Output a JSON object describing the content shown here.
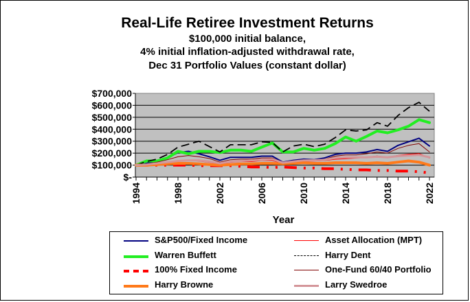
{
  "chart_data": {
    "type": "line",
    "title": "Real-Life Retiree Investment Returns",
    "subtitle": [
      "$100,000 initial balance,",
      "4% initial inflation-adjusted withdrawal rate,",
      "Dec 31 Portfolio Values (constant dollar)"
    ],
    "xlabel": "Year",
    "ylabel": "",
    "xlim": [
      1994,
      2022
    ],
    "ylim": [
      0,
      700000
    ],
    "grid": true,
    "legend_position": "bottom",
    "x_tick_labels": [
      "1994",
      "1998",
      "2002",
      "2006",
      "2010",
      "2014",
      "2018",
      "2022"
    ],
    "y_tick_labels": [
      "$700,000",
      "$600,000",
      "$500,000",
      "$400,000",
      "$300,000",
      "$200,000",
      "$100,000",
      "$-"
    ],
    "y_tick_values": [
      700000,
      600000,
      500000,
      400000,
      300000,
      200000,
      100000,
      0
    ],
    "x": [
      1994,
      1995,
      1996,
      1997,
      1998,
      1999,
      2000,
      2001,
      2002,
      2003,
      2004,
      2005,
      2006,
      2007,
      2008,
      2009,
      2010,
      2011,
      2012,
      2013,
      2014,
      2015,
      2016,
      2017,
      2018,
      2019,
      2020,
      2021,
      2022
    ],
    "series": [
      {
        "name": "S&P500/Fixed Income",
        "color": "#000080",
        "width": 2,
        "dash": "",
        "values": [
          100000,
          115000,
          135000,
          160000,
          205000,
          215000,
          195000,
          170000,
          140000,
          165000,
          165000,
          165000,
          175000,
          175000,
          125000,
          140000,
          150000,
          145000,
          160000,
          190000,
          200000,
          200000,
          210000,
          230000,
          215000,
          265000,
          295000,
          325000,
          260000
        ]
      },
      {
        "name": "Asset Allocation (MPT)",
        "color": "#ff0000",
        "width": 1.5,
        "dash": "",
        "values": [
          100000,
          105000,
          115000,
          125000,
          135000,
          140000,
          135000,
          125000,
          110000,
          125000,
          130000,
          130000,
          140000,
          140000,
          115000,
          130000,
          135000,
          135000,
          140000,
          150000,
          155000,
          160000,
          165000,
          175000,
          165000,
          180000,
          190000,
          195000,
          160000
        ]
      },
      {
        "name": "Warren Buffett",
        "color": "#22ee22",
        "width": 4,
        "dash": "",
        "values": [
          100000,
          135000,
          135000,
          160000,
          215000,
          195000,
          215000,
          215000,
          205000,
          225000,
          225000,
          215000,
          250000,
          285000,
          210000,
          210000,
          240000,
          225000,
          240000,
          280000,
          335000,
          300000,
          340000,
          385000,
          370000,
          395000,
          425000,
          480000,
          455000
        ]
      },
      {
        "name": "Harry Dent",
        "color": "#000000",
        "width": 1.8,
        "dash": "12,6",
        "values": [
          100000,
          130000,
          150000,
          190000,
          250000,
          275000,
          300000,
          255000,
          210000,
          270000,
          270000,
          270000,
          295000,
          290000,
          210000,
          260000,
          275000,
          255000,
          275000,
          330000,
          395000,
          385000,
          395000,
          455000,
          425000,
          515000,
          580000,
          625000,
          550000
        ]
      },
      {
        "name": "100% Fixed Income",
        "color": "#ff0000",
        "width": 4,
        "dash": "18,10,3,10,3,10",
        "values": [
          100000,
          100000,
          100000,
          100000,
          100000,
          100000,
          95000,
          95000,
          95000,
          95000,
          90000,
          85000,
          85000,
          80000,
          85000,
          80000,
          75000,
          75000,
          70000,
          70000,
          65000,
          60000,
          60000,
          55000,
          55000,
          50000,
          50000,
          45000,
          35000
        ]
      },
      {
        "name": "One-Fund 60/40 Portfolio",
        "color": "#800000",
        "width": 1,
        "dash": "",
        "values": [
          100000,
          110000,
          125000,
          145000,
          170000,
          180000,
          170000,
          155000,
          125000,
          145000,
          150000,
          150000,
          160000,
          160000,
          120000,
          135000,
          145000,
          140000,
          150000,
          175000,
          185000,
          185000,
          195000,
          210000,
          200000,
          240000,
          265000,
          280000,
          210000
        ]
      },
      {
        "name": "Harry Browne",
        "color": "#ff7a1a",
        "width": 4,
        "dash": "",
        "values": [
          100000,
          100000,
          105000,
          110000,
          115000,
          115000,
          110000,
          105000,
          100000,
          105000,
          110000,
          110000,
          115000,
          115000,
          110000,
          115000,
          120000,
          115000,
          115000,
          120000,
          120000,
          120000,
          115000,
          120000,
          115000,
          125000,
          135000,
          125000,
          100000
        ]
      },
      {
        "name": "Larry Swedroe",
        "color": "#d4969a",
        "width": 3,
        "dash": "",
        "values": [
          100000,
          105000,
          115000,
          125000,
          135000,
          140000,
          140000,
          130000,
          115000,
          130000,
          135000,
          140000,
          145000,
          150000,
          120000,
          130000,
          140000,
          140000,
          145000,
          160000,
          165000,
          165000,
          165000,
          170000,
          165000,
          175000,
          180000,
          185000,
          165000
        ]
      }
    ]
  }
}
